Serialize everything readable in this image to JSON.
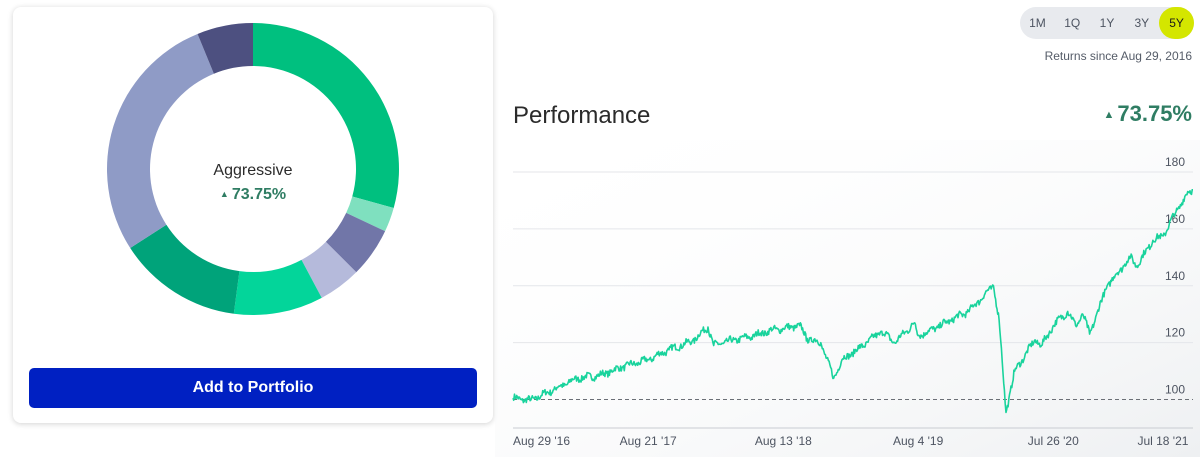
{
  "portfolio": {
    "name": "Aggressive",
    "return": "73.75%",
    "add_button": "Add to Portfolio",
    "allocation": [
      {
        "color": "#00c07f",
        "value": 29.3
      },
      {
        "color": "#7fe0bf",
        "value": 2.7
      },
      {
        "color": "#7176a8",
        "value": 5.5
      },
      {
        "color": "#b5badb",
        "value": 4.7
      },
      {
        "color": "#03d59a",
        "value": 9.9
      },
      {
        "color": "#00a37a",
        "value": 13.8
      },
      {
        "color": "#8f9bc6",
        "value": 27.9
      },
      {
        "color": "#4d5080",
        "value": 6.2
      }
    ]
  },
  "range_selector": {
    "options": [
      "1M",
      "1Q",
      "1Y",
      "3Y",
      "5Y"
    ],
    "active": "5Y"
  },
  "returns_since": "Returns since Aug 29, 2016",
  "performance": {
    "title": "Performance",
    "value": "73.75%"
  },
  "colors": {
    "line": "#19d39c",
    "positive": "#2f7d63",
    "button": "#0020c2",
    "active_range": "#d4e600"
  },
  "chart_data": {
    "type": "line",
    "title": "Performance",
    "x": [
      "2016-08-29",
      "2016-10-15",
      "2016-12-15",
      "2017-02-15",
      "2017-04-15",
      "2017-06-15",
      "2017-08-21",
      "2017-10-15",
      "2017-12-15",
      "2018-01-26",
      "2018-02-10",
      "2018-03-20",
      "2018-05-15",
      "2018-07-15",
      "2018-08-13",
      "2018-09-25",
      "2018-10-15",
      "2018-11-20",
      "2018-12-24",
      "2019-01-15",
      "2019-03-01",
      "2019-04-30",
      "2019-06-03",
      "2019-07-26",
      "2019-08-04",
      "2019-08-25",
      "2019-10-15",
      "2019-12-15",
      "2020-02-19",
      "2020-03-05",
      "2020-03-23",
      "2020-04-15",
      "2020-06-08",
      "2020-06-25",
      "2020-07-26",
      "2020-09-02",
      "2020-09-23",
      "2020-10-12",
      "2020-10-30",
      "2020-12-15",
      "2021-01-27",
      "2021-02-15",
      "2021-03-04",
      "2021-04-15",
      "2021-05-12",
      "2021-06-15",
      "2021-07-18",
      "2021-07-30"
    ],
    "values": [
      100.5,
      99.8,
      103.5,
      107.5,
      108.5,
      111.5,
      114,
      117.5,
      120.5,
      125.5,
      119,
      120.5,
      122,
      124.5,
      125,
      126,
      121.5,
      120,
      107.5,
      114,
      118,
      124,
      120,
      127,
      122.5,
      123.5,
      127,
      131,
      140,
      128,
      95.5,
      110,
      121,
      119,
      126,
      131,
      126,
      130,
      123,
      140,
      147,
      150,
      147,
      156,
      157.5,
      166,
      173,
      173.75
    ],
    "ylim": [
      90,
      180
    ],
    "yticks": [
      100,
      120,
      140,
      160,
      180
    ],
    "baseline": 100,
    "xticks": [
      "Aug 29 '16",
      "Aug 21 '17",
      "Aug 13 '18",
      "Aug 4 '19",
      "Jul 26 '20",
      "Jul 18 '21"
    ],
    "xtick_dates": [
      "2016-08-29",
      "2017-08-21",
      "2018-08-13",
      "2019-08-04",
      "2020-07-26",
      "2021-07-18"
    ],
    "grid": true,
    "legend": "none"
  }
}
